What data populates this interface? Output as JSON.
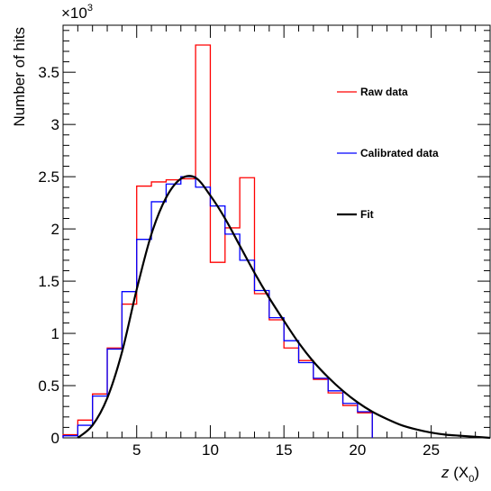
{
  "chart_data": {
    "type": "histogram",
    "ylabel": "Number of hits",
    "xlabel_italic": "z",
    "xlabel_unit": " (X",
    "xlabel_sub": "0",
    "xlabel_close": ")",
    "y_multiplier_base": "×10",
    "y_multiplier_exp": "3",
    "xlim": [
      0,
      29
    ],
    "ylim": [
      0,
      3.95
    ],
    "x_ticks": [
      5,
      10,
      15,
      20,
      25
    ],
    "y_ticks": [
      0,
      0.5,
      1,
      1.5,
      2,
      2.5,
      3,
      3.5
    ],
    "y_tick_labels": [
      "0",
      "0.5",
      "1",
      "1.5",
      "2",
      "2.5",
      "3",
      "3.5"
    ],
    "bin_edges": [
      0,
      1,
      2,
      3,
      4,
      5,
      6,
      7,
      8,
      9,
      10,
      11,
      12,
      13,
      14,
      15,
      16,
      17,
      18,
      19,
      20,
      21
    ],
    "legend_position": "right",
    "series": [
      {
        "name": "Raw data",
        "color": "#ff0000",
        "style": "step",
        "values": [
          0.03,
          0.17,
          0.42,
          0.86,
          1.28,
          2.41,
          2.45,
          2.47,
          2.48,
          3.76,
          1.68,
          2.01,
          2.49,
          1.38,
          1.13,
          0.86,
          0.74,
          0.56,
          0.43,
          0.31,
          0.24
        ]
      },
      {
        "name": "Calibrated data",
        "color": "#0000ff",
        "style": "step",
        "values": [
          0.02,
          0.12,
          0.4,
          0.85,
          1.4,
          1.9,
          2.26,
          2.43,
          2.5,
          2.4,
          2.22,
          1.95,
          1.7,
          1.41,
          1.15,
          0.93,
          0.72,
          0.57,
          0.45,
          0.33,
          0.25
        ]
      },
      {
        "name": "Fit",
        "color": "#000000",
        "style": "line",
        "x": [
          1,
          2,
          3,
          4,
          5,
          6,
          7,
          8,
          9,
          10,
          11,
          12,
          13,
          14,
          15,
          16,
          17,
          18,
          19,
          20,
          21,
          22,
          23,
          24,
          25,
          26,
          27,
          28,
          29
        ],
        "values": [
          0.0,
          0.12,
          0.38,
          0.82,
          1.42,
          1.95,
          2.3,
          2.48,
          2.49,
          2.32,
          2.1,
          1.84,
          1.58,
          1.34,
          1.12,
          0.91,
          0.73,
          0.58,
          0.45,
          0.34,
          0.25,
          0.18,
          0.12,
          0.08,
          0.05,
          0.03,
          0.02,
          0.01,
          0.0
        ]
      }
    ]
  }
}
